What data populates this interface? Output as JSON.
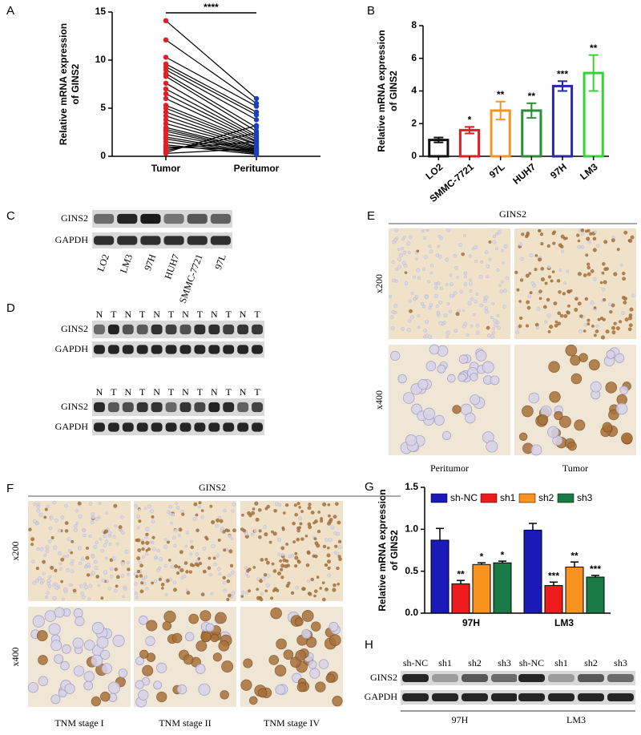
{
  "panel_letters": [
    "A",
    "B",
    "C",
    "D",
    "E",
    "F",
    "G",
    "H"
  ],
  "chart_data": [
    {
      "type": "paired",
      "categories": [
        "Tumor",
        "Peritumor"
      ],
      "ylabel": [
        "Relative mRNA expression",
        "of GINS2"
      ],
      "ylim": [
        0,
        15
      ],
      "yticks": [
        0,
        5,
        10,
        15
      ],
      "colors": [
        "#e31e24",
        "#1c3fc1"
      ],
      "significance": "****",
      "tumor": [
        14.1,
        12.1,
        10.3,
        9.6,
        9.3,
        9.0,
        8.6,
        8.3,
        7.6,
        7.0,
        6.5,
        6.0,
        5.3,
        5.0,
        4.6,
        4.2,
        3.8,
        3.4,
        3.0,
        2.8,
        2.6,
        2.3,
        2.0,
        1.8,
        1.5,
        1.2,
        1.0,
        0.8,
        0.6,
        0.4,
        0.3
      ],
      "peritumor": [
        6.0,
        5.5,
        5.2,
        4.6,
        4.3,
        3.8,
        3.0,
        2.6,
        2.2,
        2.0,
        1.8,
        1.6,
        1.5,
        1.3,
        1.2,
        1.0,
        0.9,
        0.8,
        0.7,
        0.6,
        0.5,
        0.5,
        0.4,
        0.3,
        0.3,
        0.2,
        0.6,
        1.5,
        2.4,
        3.2,
        0.8
      ]
    },
    {
      "type": "bar",
      "categories": [
        "LO2",
        "SMMC-7721",
        "97L",
        "HUH7",
        "97H",
        "LM3"
      ],
      "values": [
        1.0,
        1.6,
        2.8,
        2.8,
        4.3,
        5.1
      ],
      "errors": [
        0.15,
        0.2,
        0.55,
        0.45,
        0.3,
        1.1
      ],
      "colors": [
        "#111111",
        "#e31e24",
        "#f39425",
        "#2e8b3a",
        "#2a2aa8",
        "#35d435"
      ],
      "significance": [
        null,
        "*",
        "**",
        "**",
        "***",
        "**"
      ],
      "ylabel": [
        "Relative mRNA expression",
        "of GINS2"
      ],
      "ylim": [
        0,
        8
      ],
      "yticks": [
        0,
        2,
        4,
        6,
        8
      ]
    },
    {
      "type": "grouped_bar",
      "categories": [
        "97H",
        "LM3"
      ],
      "series": [
        {
          "name": "sh-NC",
          "color": "#1a1ab8",
          "values": [
            0.87,
            0.99
          ],
          "errors": [
            0.14,
            0.08
          ],
          "significance": [
            null,
            null
          ]
        },
        {
          "name": "sh1",
          "color": "#ee1c1c",
          "values": [
            0.35,
            0.33
          ],
          "errors": [
            0.04,
            0.04
          ],
          "significance": [
            "**",
            "***"
          ]
        },
        {
          "name": "sh2",
          "color": "#f7931e",
          "values": [
            0.58,
            0.55
          ],
          "errors": [
            0.02,
            0.06
          ],
          "significance": [
            "*",
            "**"
          ]
        },
        {
          "name": "sh3",
          "color": "#1a7a45",
          "values": [
            0.6,
            0.43
          ],
          "errors": [
            0.02,
            0.02
          ],
          "significance": [
            "*",
            "***"
          ]
        }
      ],
      "ylabel": [
        "Relative mRNA expression",
        "of GINS2"
      ],
      "ylim": [
        0,
        1.5
      ],
      "yticks": [
        {
          "value": 0,
          "label": "0.0"
        },
        0.5,
        {
          "value": 1,
          "label": "1.0"
        },
        1.5
      ]
    }
  ],
  "blot_c": {
    "rows": [
      "GINS2",
      "GAPDH"
    ],
    "lanes": [
      "LO2",
      "LM3",
      "97H",
      "HUH7",
      "SMMC-7721",
      "97L"
    ]
  },
  "blot_d": {
    "blocks": [
      {
        "rows": [
          "GINS2",
          "GAPDH"
        ],
        "lanes": [
          "N",
          "T",
          "N",
          "T",
          "N",
          "T",
          "N",
          "T",
          "N",
          "T",
          "N",
          "T"
        ]
      },
      {
        "rows": [
          "GINS2",
          "GAPDH"
        ],
        "lanes": [
          "N",
          "T",
          "N",
          "T",
          "N",
          "T",
          "N",
          "T",
          "N",
          "T",
          "N",
          "T"
        ]
      }
    ]
  },
  "ihc_e": {
    "title": "GINS2",
    "rows": [
      "x200",
      "x400"
    ],
    "columns": [
      "Peritumor",
      "Tumor"
    ]
  },
  "ihc_f": {
    "title": "GINS2",
    "rows": [
      "x200",
      "x400"
    ],
    "columns": [
      "TNM stage I",
      "TNM stage II",
      "TNM stage IV"
    ]
  },
  "blot_h": {
    "rows": [
      "GINS2",
      "GAPDH"
    ],
    "groups": [
      {
        "name": "97H",
        "lanes": [
          "sh-NC",
          "sh1",
          "sh2",
          "sh3"
        ]
      },
      {
        "name": "LM3",
        "lanes": [
          "sh-NC",
          "sh1",
          "sh2",
          "sh3"
        ]
      }
    ]
  }
}
